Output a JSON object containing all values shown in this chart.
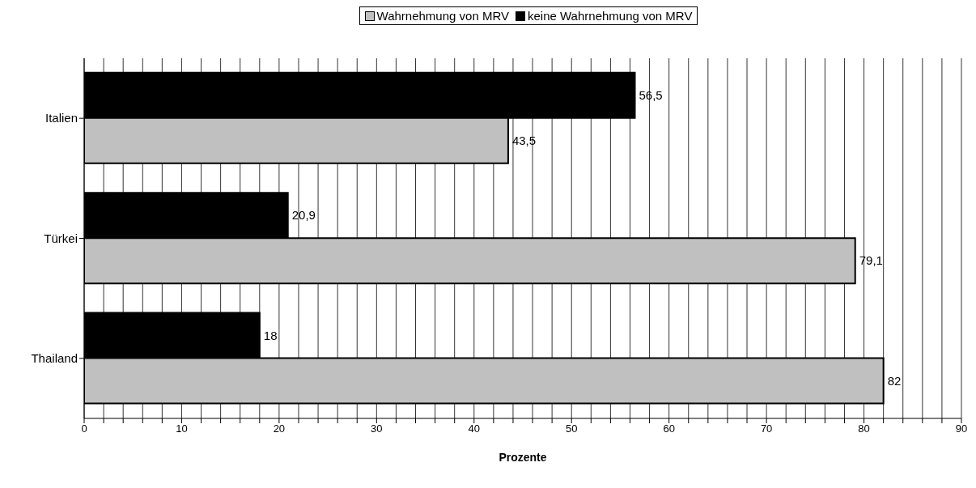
{
  "chart_data": {
    "type": "bar",
    "orientation": "horizontal",
    "xlabel": "Prozente",
    "categories": [
      "Italien",
      "Türkei",
      "Thailand"
    ],
    "series": [
      {
        "name": "Wahrnehmung von MRV",
        "color": "#c0c0c0",
        "values": [
          43.5,
          79.1,
          82
        ],
        "value_labels": [
          "43,5",
          "79,1",
          "82"
        ]
      },
      {
        "name": "keine Wahrnehmung von MRV",
        "color": "#000000",
        "values": [
          56.5,
          20.9,
          18
        ],
        "value_labels": [
          "56,5",
          "20,9",
          "18"
        ]
      }
    ],
    "xlim": [
      0,
      90
    ],
    "xticks": [
      0,
      {
        "value": 2,
        "label": null
      },
      {
        "value": 4,
        "label": null
      },
      {
        "value": 6,
        "label": null
      },
      {
        "value": 8,
        "label": null
      },
      10,
      {
        "value": 12,
        "label": null
      },
      {
        "value": 14,
        "label": null
      },
      {
        "value": 16,
        "label": null
      },
      {
        "value": 18,
        "label": null
      },
      20,
      {
        "value": 22,
        "label": null
      },
      {
        "value": 24,
        "label": null
      },
      {
        "value": 26,
        "label": null
      },
      {
        "value": 28,
        "label": null
      },
      30,
      {
        "value": 32,
        "label": null
      },
      {
        "value": 34,
        "label": null
      },
      {
        "value": 36,
        "label": null
      },
      {
        "value": 38,
        "label": null
      },
      40,
      {
        "value": 42,
        "label": null
      },
      {
        "value": 44,
        "label": null
      },
      {
        "value": 46,
        "label": null
      },
      {
        "value": 48,
        "label": null
      },
      50,
      {
        "value": 52,
        "label": null
      },
      {
        "value": 54,
        "label": null
      },
      {
        "value": 56,
        "label": null
      },
      {
        "value": 58,
        "label": null
      },
      60,
      {
        "value": 62,
        "label": null
      },
      {
        "value": 64,
        "label": null
      },
      {
        "value": 66,
        "label": null
      },
      {
        "value": 68,
        "label": null
      },
      70,
      {
        "value": 72,
        "label": null
      },
      {
        "value": 74,
        "label": null
      },
      {
        "value": 76,
        "label": null
      },
      {
        "value": 78,
        "label": null
      },
      80,
      {
        "value": 82,
        "label": null
      },
      {
        "value": 84,
        "label": null
      },
      {
        "value": 86,
        "label": null
      },
      {
        "value": 88,
        "label": null
      },
      90
    ],
    "grid": "x",
    "legend": "top"
  }
}
